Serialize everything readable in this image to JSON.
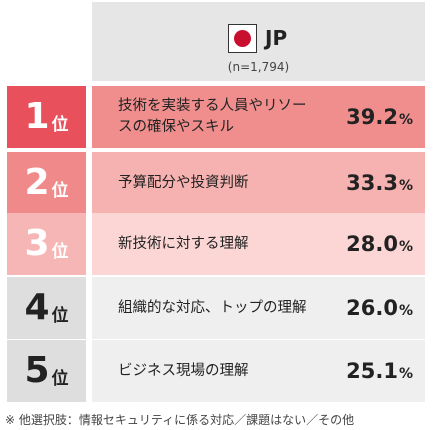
{
  "header": {
    "country": "JP",
    "sample": "(n=1,794)"
  },
  "colors": {
    "rank_bg": [
      "#e8505b",
      "#f08a8a",
      "#f7b6b6",
      "#dedede",
      "#dedede"
    ],
    "rank_fg": [
      "#ffffff",
      "#ffffff",
      "#ffffff",
      "#222222",
      "#222222"
    ],
    "cell_bg": [
      "#f08e8e",
      "#f6b2b0",
      "#fbd6d5",
      "#efefef",
      "#efefef"
    ]
  },
  "chart_data": {
    "type": "table",
    "rank_suffix": "位",
    "percent_sign": "%",
    "rows": [
      {
        "rank": "1",
        "label": "技術を実装する人員やリソースの確保やスキル",
        "value": "39.2"
      },
      {
        "rank": "2",
        "label": "予算配分や投資判断",
        "value": "33.3"
      },
      {
        "rank": "3",
        "label": "新技術に対する理解",
        "value": "28.0"
      },
      {
        "rank": "4",
        "label": "組織的な対応、トップの理解",
        "value": "26.0"
      },
      {
        "rank": "5",
        "label": "ビジネス現場の理解",
        "value": "25.1"
      }
    ]
  },
  "footnote": "※ 他選択肢：情報セキュリティに係る対応／課題はない／その他"
}
